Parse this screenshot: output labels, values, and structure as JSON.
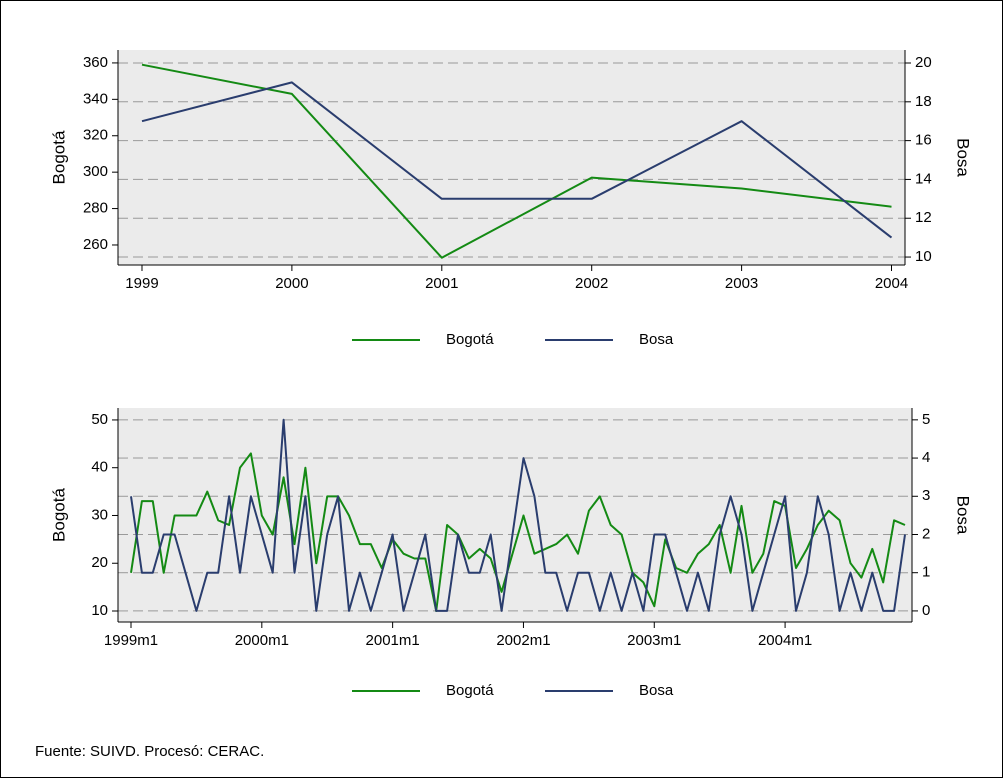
{
  "chart_data": [
    {
      "type": "line",
      "x": [
        1999,
        2000,
        2001,
        2002,
        2003,
        2004
      ],
      "xlim": [
        1998.84,
        2004.09
      ],
      "xticks": [
        1999,
        2000,
        2001,
        2002,
        2003,
        2004
      ],
      "ylabel": "Bogotá",
      "y2label": "Bosa",
      "ylim": [
        249,
        367.1
      ],
      "yticks": [
        260,
        280,
        300,
        320,
        340,
        360
      ],
      "y2lim": [
        9.59,
        20.67
      ],
      "y2ticks": [
        10,
        12,
        14,
        16,
        18,
        20
      ],
      "grid": true,
      "legend": "bottom",
      "series": [
        {
          "name": "Bogotá",
          "color": "#148a14",
          "values": [
            359,
            343,
            253,
            297,
            291,
            281
          ]
        },
        {
          "name": "Bosa",
          "color": "#2a3d6e",
          "axis": "y2",
          "values": [
            17,
            19,
            13,
            13,
            17,
            11
          ]
        }
      ]
    },
    {
      "type": "line",
      "categories": [
        "1999m1",
        null,
        null,
        null,
        null,
        null,
        null,
        null,
        null,
        null,
        null,
        null,
        "2000m1",
        null,
        null,
        null,
        null,
        null,
        null,
        null,
        null,
        null,
        null,
        null,
        "2001m1",
        null,
        null,
        null,
        null,
        null,
        null,
        null,
        null,
        null,
        null,
        null,
        "2002m1",
        null,
        null,
        null,
        null,
        null,
        null,
        null,
        null,
        null,
        null,
        null,
        "2003m1",
        null,
        null,
        null,
        null,
        null,
        null,
        null,
        null,
        null,
        null,
        null,
        "2004m1",
        null,
        null,
        null,
        null,
        null,
        null,
        null,
        null,
        null,
        null,
        null
      ],
      "ylabel": "Bogotá",
      "y2label": "Bosa",
      "ylim": [
        7.7,
        52.5
      ],
      "yticks": [
        10,
        20,
        30,
        40,
        50
      ],
      "y2lim": [
        -0.29,
        5.31
      ],
      "y2ticks": [
        0,
        1,
        2,
        3,
        4,
        5
      ],
      "grid": true,
      "legend": "bottom",
      "series": [
        {
          "name": "Bogotá",
          "color": "#148a14",
          "values": [
            18,
            33,
            33,
            18,
            30,
            30,
            30,
            35,
            29,
            28,
            40,
            43,
            30,
            26,
            38,
            24,
            40,
            20,
            34,
            34,
            30,
            24,
            24,
            19,
            25,
            22,
            21,
            21,
            10,
            28,
            26,
            21,
            23,
            21,
            14,
            22,
            30,
            22,
            23,
            24,
            26,
            22,
            31,
            34,
            28,
            26,
            18,
            16,
            11,
            25,
            19,
            18,
            22,
            24,
            28,
            18,
            32,
            18,
            22,
            33,
            32,
            19,
            23,
            28,
            31,
            29,
            20,
            17,
            23,
            16,
            29,
            28
          ]
        },
        {
          "name": "Bosa",
          "color": "#2a3d6e",
          "axis": "y2",
          "values": [
            3,
            1,
            1,
            2,
            2,
            1,
            0,
            1,
            1,
            3,
            1,
            3,
            2,
            1,
            5,
            1,
            3,
            0,
            2,
            3,
            0,
            1,
            0,
            1,
            2,
            0,
            1,
            2,
            0,
            0,
            2,
            1,
            1,
            2,
            0,
            2,
            4,
            3,
            1,
            1,
            0,
            1,
            1,
            0,
            1,
            0,
            1,
            0,
            2,
            2,
            1,
            0,
            1,
            0,
            2,
            3,
            2,
            0,
            1,
            2,
            3,
            0,
            1,
            3,
            2,
            0,
            1,
            0,
            1,
            0,
            0,
            2
          ]
        }
      ]
    }
  ],
  "note": "Fuente: SUIVD. Procesó: CERAC."
}
